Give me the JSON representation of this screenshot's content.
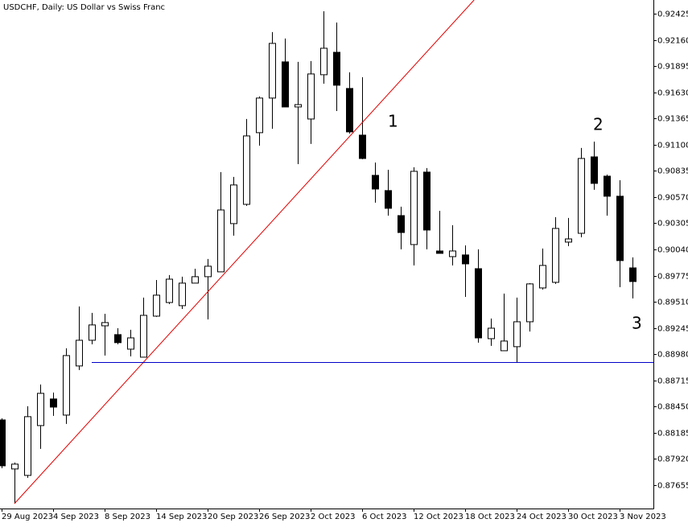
{
  "chart_data": {
    "type": "candlestick",
    "title": "USDCHF, Daily:  US Dollar vs Swiss Franc",
    "categories": [
      "29 Aug 2023",
      null,
      null,
      null,
      "4 Sep 2023",
      null,
      null,
      null,
      "8 Sep 2023",
      null,
      null,
      null,
      "14 Sep 2023",
      null,
      null,
      null,
      "20 Sep 2023",
      null,
      null,
      null,
      "26 Sep 2023",
      null,
      null,
      null,
      "2 Oct 2023",
      null,
      null,
      null,
      "6 Oct 2023",
      null,
      null,
      null,
      "12 Oct 2023",
      null,
      null,
      null,
      "18 Oct 2023",
      null,
      null,
      null,
      "24 Oct 2023",
      null,
      null,
      null,
      "30 Oct 2023",
      null,
      null,
      null,
      "3 Nov 2023",
      null
    ],
    "open": [
      0.88315,
      0.87819,
      0.87754,
      0.88258,
      0.88527,
      0.88364,
      0.88861,
      0.89121,
      0.89267,
      0.89178,
      0.89031,
      0.8895,
      0.89365,
      0.89503,
      0.89471,
      0.89699,
      0.89764,
      0.89813,
      0.90301,
      0.90496,
      0.91221,
      0.91571,
      0.91937,
      0.91481,
      0.91359,
      0.91807,
      0.92034,
      0.91668,
      0.91196,
      0.90789,
      0.90635,
      0.90382,
      0.90089,
      0.90822,
      0.90024,
      0.89967,
      0.89984,
      0.89845,
      0.89137,
      0.89015,
      0.89056,
      0.89308,
      0.8965,
      0.89707,
      0.90114,
      0.90203,
      0.90976,
      0.90781,
      0.90578,
      0.89853
    ],
    "high": [
      0.88332,
      0.87884,
      0.88454,
      0.88673,
      0.88592,
      0.8904,
      0.89463,
      0.89398,
      0.89389,
      0.89243,
      0.89227,
      0.89552,
      0.89731,
      0.8978,
      0.89764,
      0.89845,
      0.89943,
      0.90822,
      0.90773,
      0.91359,
      0.91587,
      0.92238,
      0.92173,
      0.91937,
      0.91945,
      0.92449,
      0.92335,
      0.91831,
      0.91782,
      0.90919,
      0.90846,
      0.90472,
      0.90871,
      0.90863,
      0.90431,
      0.90285,
      0.90081,
      0.90041,
      0.89341,
      0.89593,
      0.89552,
      0.89699,
      0.90049,
      0.90366,
      0.90358,
      0.91066,
      0.91131,
      0.90797,
      0.9074,
      0.89959
    ],
    "low": [
      0.87827,
      0.87469,
      0.87729,
      0.88022,
      0.88356,
      0.88275,
      0.8882,
      0.8908,
      0.88966,
      0.8908,
      0.88958,
      0.8895,
      0.89357,
      0.89487,
      0.89438,
      0.89699,
      0.89332,
      0.89813,
      0.90179,
      0.9048,
      0.9109,
      0.91261,
      0.91481,
      0.90903,
      0.91107,
      0.91717,
      0.9144,
      0.91212,
      0.90952,
      0.90513,
      0.90382,
      0.90041,
      0.89878,
      0.90041,
      0.9,
      0.89878,
      0.8956,
      0.89097,
      0.89064,
      0.89015,
      0.88893,
      0.8921,
      0.89634,
      0.89691,
      0.90073,
      0.90163,
      0.90643,
      0.90382,
      0.89658,
      0.89544
    ],
    "close": [
      0.87851,
      0.87868,
      0.88348,
      0.88584,
      0.88445,
      0.88966,
      0.89121,
      0.89276,
      0.893,
      0.89097,
      0.89145,
      0.89373,
      0.89577,
      0.89739,
      0.89699,
      0.89764,
      0.8987,
      0.90439,
      0.90692,
      0.91188,
      0.91571,
      0.92124,
      0.91481,
      0.91505,
      0.91815,
      0.92075,
      0.91701,
      0.91229,
      0.9096,
      0.90651,
      0.90456,
      0.90211,
      0.9083,
      0.90236,
      0.9,
      0.90024,
      0.89894,
      0.89145,
      0.89243,
      0.89113,
      0.89308,
      0.89691,
      0.89878,
      0.90252,
      0.90146,
      0.9096,
      0.90708,
      0.90578,
      0.89927,
      0.89715
    ],
    "up_color": "#ffffff",
    "down_color": "#000000",
    "ylim": [
      0.87419,
      0.92563
    ],
    "yticks": [
      0.92425,
      {
        "value": 0.9216,
        "label": "0.92160"
      },
      0.91895,
      {
        "value": 0.9163,
        "label": "0.91630"
      },
      0.91365,
      {
        "value": 0.911,
        "label": "0.91100"
      },
      0.90835,
      {
        "value": 0.9057,
        "label": "0.90570"
      },
      0.90305,
      {
        "value": 0.9004,
        "label": "0.90040"
      },
      0.89775,
      {
        "value": 0.8951,
        "label": "0.89510"
      },
      0.89245,
      {
        "value": 0.8898,
        "label": "0.88980"
      },
      0.88715,
      {
        "value": 0.8845,
        "label": "0.88450"
      },
      0.88185,
      {
        "value": 0.8792,
        "label": "0.87920"
      },
      0.87655
    ],
    "trendline": {
      "color": "#e00000",
      "x": [
        1,
        36.7
      ],
      "y": [
        0.87469,
        0.92563
      ]
    },
    "hline": {
      "color": "#0000c8",
      "value": 0.88901,
      "from": 7
    },
    "annotations": [
      "1",
      "2",
      "3"
    ]
  }
}
